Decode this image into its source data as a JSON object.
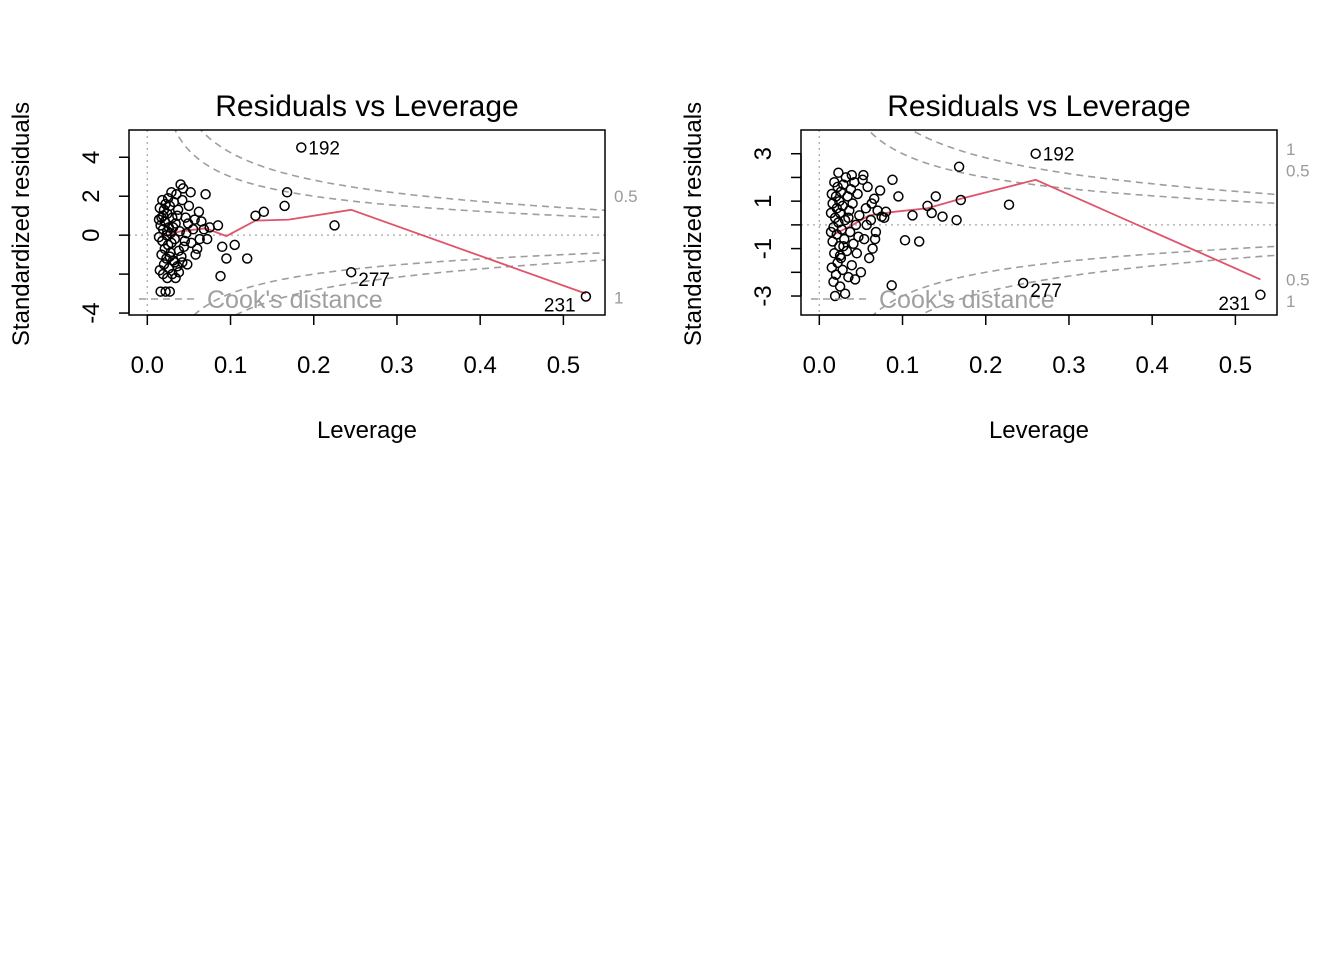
{
  "chart_data": [
    {
      "type": "scatter",
      "title": "Residuals vs Leverage",
      "xlabel": "Leverage",
      "ylabel": "Standardized residuals",
      "xlim": [
        -0.022,
        0.55
      ],
      "ylim": [
        -4.1,
        5.4
      ],
      "x_ticks": [
        0.0,
        0.1,
        0.2,
        0.3,
        0.4,
        0.5
      ],
      "x_tick_labels": [
        "0.0",
        "0.1",
        "0.2",
        "0.3",
        "0.4",
        "0.5"
      ],
      "y_ticks": [
        -4,
        -2,
        0,
        2,
        4
      ],
      "y_tick_labels": [
        "-4",
        "",
        "0",
        "2",
        "4"
      ],
      "cook_legend": "Cook's distance",
      "cook_contour_labels": [
        {
          "text": "0.5",
          "y": 2.0
        },
        {
          "text": "1",
          "y": -3.2
        }
      ],
      "labeled_points": [
        {
          "label": "192",
          "x": 0.185,
          "y": 4.5
        },
        {
          "label": "277",
          "x": 0.245,
          "y": -1.9
        },
        {
          "label": "231",
          "x": 0.527,
          "y": -3.15
        }
      ],
      "points": [
        [
          0.185,
          4.5
        ],
        [
          0.245,
          -1.9
        ],
        [
          0.527,
          -3.15
        ],
        [
          0.168,
          2.2
        ],
        [
          0.165,
          1.5
        ],
        [
          0.225,
          0.5
        ],
        [
          0.14,
          1.2
        ],
        [
          0.13,
          1.0
        ],
        [
          0.12,
          -1.2
        ],
        [
          0.105,
          -0.5
        ],
        [
          0.095,
          -1.2
        ],
        [
          0.09,
          -0.6
        ],
        [
          0.088,
          -2.1
        ],
        [
          0.085,
          0.5
        ],
        [
          0.07,
          2.1
        ],
        [
          0.075,
          0.4
        ],
        [
          0.072,
          -0.2
        ],
        [
          0.065,
          0.7
        ],
        [
          0.062,
          1.2
        ],
        [
          0.06,
          -0.7
        ],
        [
          0.058,
          -1.0
        ],
        [
          0.055,
          0.3
        ],
        [
          0.052,
          2.2
        ],
        [
          0.05,
          1.5
        ],
        [
          0.048,
          -1.5
        ],
        [
          0.046,
          0.9
        ],
        [
          0.045,
          -0.3
        ],
        [
          0.043,
          2.4
        ],
        [
          0.042,
          1.8
        ],
        [
          0.041,
          -1.1
        ],
        [
          0.04,
          2.6
        ],
        [
          0.039,
          0.2
        ],
        [
          0.038,
          -0.8
        ],
        [
          0.037,
          1.3
        ],
        [
          0.036,
          -1.6
        ],
        [
          0.035,
          2.1
        ],
        [
          0.034,
          0.6
        ],
        [
          0.033,
          -0.2
        ],
        [
          0.032,
          1.7
        ],
        [
          0.031,
          -1.3
        ],
        [
          0.03,
          0.9
        ],
        [
          0.03,
          -2.0
        ],
        [
          0.029,
          2.2
        ],
        [
          0.028,
          0.1
        ],
        [
          0.028,
          -0.9
        ],
        [
          0.027,
          1.5
        ],
        [
          0.026,
          -1.7
        ],
        [
          0.026,
          0.4
        ],
        [
          0.025,
          1.9
        ],
        [
          0.025,
          -0.5
        ],
        [
          0.024,
          -2.2
        ],
        [
          0.024,
          1.1
        ],
        [
          0.023,
          0.0
        ],
        [
          0.023,
          -1.2
        ],
        [
          0.022,
          1.6
        ],
        [
          0.022,
          -2.9
        ],
        [
          0.021,
          0.7
        ],
        [
          0.021,
          -0.7
        ],
        [
          0.02,
          1.3
        ],
        [
          0.02,
          -1.5
        ],
        [
          0.019,
          0.3
        ],
        [
          0.019,
          -2.0
        ],
        [
          0.018,
          1.8
        ],
        [
          0.018,
          -0.3
        ],
        [
          0.017,
          0.9
        ],
        [
          0.017,
          -1.0
        ],
        [
          0.016,
          -2.9
        ],
        [
          0.016,
          0.5
        ],
        [
          0.015,
          1.4
        ],
        [
          0.015,
          -1.8
        ],
        [
          0.014,
          -0.1
        ],
        [
          0.014,
          0.8
        ],
        [
          0.027,
          -2.9
        ],
        [
          0.034,
          -2.2
        ],
        [
          0.044,
          -0.6
        ],
        [
          0.047,
          0.1
        ],
        [
          0.053,
          -0.4
        ],
        [
          0.057,
          0.8
        ],
        [
          0.063,
          -0.2
        ],
        [
          0.068,
          0.3
        ],
        [
          0.031,
          0.4
        ],
        [
          0.029,
          -0.4
        ],
        [
          0.036,
          1.0
        ],
        [
          0.038,
          -1.9
        ],
        [
          0.024,
          0.2
        ],
        [
          0.033,
          -1.4
        ],
        [
          0.019,
          1.0
        ],
        [
          0.042,
          -1.4
        ],
        [
          0.049,
          0.6
        ],
        [
          0.027,
          -1.1
        ]
      ],
      "smooth": [
        [
          0.015,
          -0.1
        ],
        [
          0.04,
          0.2
        ],
        [
          0.07,
          0.35
        ],
        [
          0.095,
          -0.05
        ],
        [
          0.13,
          0.75
        ],
        [
          0.17,
          0.8
        ],
        [
          0.245,
          1.3
        ],
        [
          0.527,
          -3.0
        ]
      ],
      "colors": {
        "points": "#000000",
        "smooth": "#df536b",
        "cook": "#9e9e9e",
        "ref": "#b5b5b5"
      }
    },
    {
      "type": "scatter",
      "title": "Residuals vs Leverage",
      "xlabel": "Leverage",
      "ylabel": "Standardized residuals",
      "xlim": [
        -0.022,
        0.55
      ],
      "ylim": [
        -3.8,
        4.0
      ],
      "x_ticks": [
        0.0,
        0.1,
        0.2,
        0.3,
        0.4,
        0.5
      ],
      "x_tick_labels": [
        "0.0",
        "0.1",
        "0.2",
        "0.3",
        "0.4",
        "0.5"
      ],
      "y_ticks": [
        -3,
        -2,
        -1,
        0,
        1,
        2,
        3
      ],
      "y_tick_labels": [
        "-3",
        "",
        "-1",
        "",
        "1",
        "",
        "3"
      ],
      "cook_legend": "Cook's distance",
      "cook_contour_labels": [
        {
          "text": "1",
          "y": 3.2
        },
        {
          "text": "0.5",
          "y": 2.3
        },
        {
          "text": "0.5",
          "y": -2.3
        },
        {
          "text": "1",
          "y": -3.2
        }
      ],
      "labeled_points": [
        {
          "label": "192",
          "x": 0.26,
          "y": 3.0
        },
        {
          "label": "277",
          "x": 0.245,
          "y": -2.45
        },
        {
          "label": "231",
          "x": 0.53,
          "y": -2.95
        }
      ],
      "points": [
        [
          0.26,
          3.0
        ],
        [
          0.245,
          -2.45
        ],
        [
          0.53,
          -2.95
        ],
        [
          0.168,
          2.45
        ],
        [
          0.17,
          1.05
        ],
        [
          0.165,
          0.2
        ],
        [
          0.228,
          0.85
        ],
        [
          0.14,
          1.2
        ],
        [
          0.135,
          0.5
        ],
        [
          0.148,
          0.35
        ],
        [
          0.12,
          -0.7
        ],
        [
          0.112,
          0.4
        ],
        [
          0.103,
          -0.65
        ],
        [
          0.13,
          0.8
        ],
        [
          0.095,
          1.2
        ],
        [
          0.087,
          -2.55
        ],
        [
          0.088,
          1.9
        ],
        [
          0.08,
          0.55
        ],
        [
          0.075,
          0.35
        ],
        [
          0.073,
          1.45
        ],
        [
          0.07,
          0.6
        ],
        [
          0.068,
          -0.3
        ],
        [
          0.066,
          1.1
        ],
        [
          0.064,
          -1.0
        ],
        [
          0.062,
          0.2
        ],
        [
          0.06,
          -1.4
        ],
        [
          0.058,
          1.6
        ],
        [
          0.056,
          0.7
        ],
        [
          0.054,
          -0.6
        ],
        [
          0.052,
          1.9
        ],
        [
          0.05,
          -2.0
        ],
        [
          0.048,
          0.4
        ],
        [
          0.046,
          1.3
        ],
        [
          0.045,
          -1.2
        ],
        [
          0.044,
          0.0
        ],
        [
          0.042,
          1.8
        ],
        [
          0.041,
          -0.8
        ],
        [
          0.04,
          0.9
        ],
        [
          0.039,
          -1.7
        ],
        [
          0.038,
          1.5
        ],
        [
          0.037,
          -0.3
        ],
        [
          0.036,
          0.6
        ],
        [
          0.035,
          -2.2
        ],
        [
          0.034,
          1.2
        ],
        [
          0.033,
          -1.1
        ],
        [
          0.032,
          2.0
        ],
        [
          0.031,
          0.2
        ],
        [
          0.03,
          -0.6
        ],
        [
          0.029,
          1.7
        ],
        [
          0.028,
          -1.9
        ],
        [
          0.028,
          0.8
        ],
        [
          0.027,
          -0.2
        ],
        [
          0.026,
          1.4
        ],
        [
          0.026,
          -1.4
        ],
        [
          0.025,
          0.5
        ],
        [
          0.025,
          -2.6
        ],
        [
          0.024,
          1.0
        ],
        [
          0.024,
          -0.9
        ],
        [
          0.023,
          2.2
        ],
        [
          0.023,
          0.1
        ],
        [
          0.022,
          -1.6
        ],
        [
          0.022,
          1.6
        ],
        [
          0.021,
          -0.4
        ],
        [
          0.021,
          0.7
        ],
        [
          0.02,
          -2.1
        ],
        [
          0.02,
          1.2
        ],
        [
          0.019,
          -3.0
        ],
        [
          0.019,
          0.3
        ],
        [
          0.018,
          -1.2
        ],
        [
          0.018,
          1.8
        ],
        [
          0.017,
          -0.1
        ],
        [
          0.017,
          -2.4
        ],
        [
          0.016,
          0.9
        ],
        [
          0.016,
          -0.7
        ],
        [
          0.015,
          1.3
        ],
        [
          0.015,
          -1.8
        ],
        [
          0.014,
          0.5
        ],
        [
          0.014,
          -0.3
        ],
        [
          0.031,
          -2.9
        ],
        [
          0.043,
          -2.3
        ],
        [
          0.053,
          2.1
        ],
        [
          0.047,
          -0.5
        ],
        [
          0.057,
          0.0
        ],
        [
          0.063,
          0.9
        ],
        [
          0.067,
          -0.6
        ],
        [
          0.078,
          0.3
        ],
        [
          0.035,
          0.3
        ],
        [
          0.029,
          -0.9
        ],
        [
          0.039,
          2.1
        ],
        [
          0.025,
          -1.3
        ]
      ],
      "smooth": [
        [
          0.015,
          -0.45
        ],
        [
          0.04,
          0.0
        ],
        [
          0.06,
          0.4
        ],
        [
          0.09,
          0.55
        ],
        [
          0.13,
          0.7
        ],
        [
          0.17,
          1.1
        ],
        [
          0.26,
          1.9
        ],
        [
          0.53,
          -2.3
        ]
      ],
      "colors": {
        "points": "#000000",
        "smooth": "#df536b",
        "cook": "#9e9e9e",
        "ref": "#b5b5b5"
      }
    }
  ]
}
